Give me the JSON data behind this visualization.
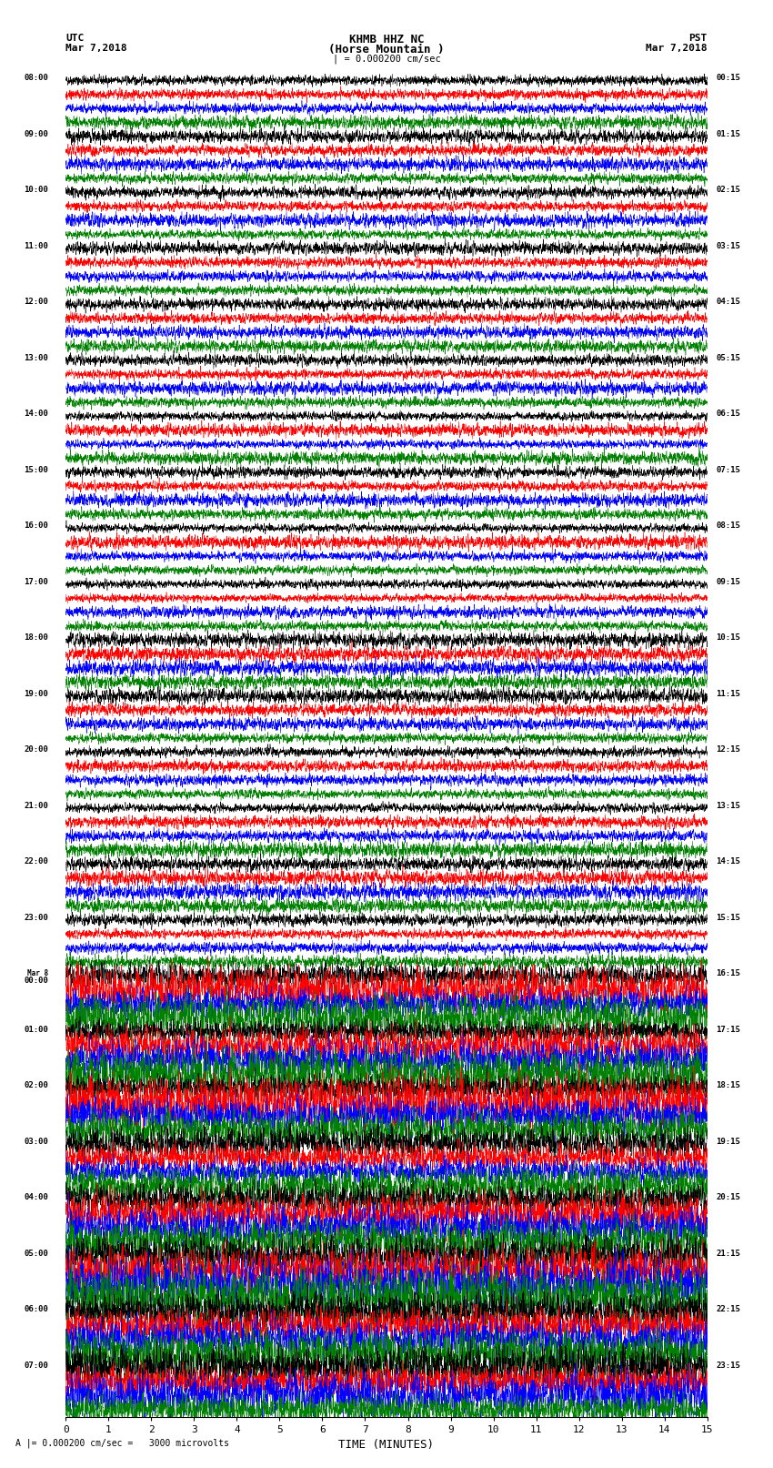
{
  "title_line1": "KHMB HHZ NC",
  "title_line2": "(Horse Mountain )",
  "title_line3": "| = 0.000200 cm/sec",
  "left_label_top": "UTC",
  "left_label_date": "Mar 7,2018",
  "right_label_top": "PST",
  "right_label_date": "Mar 7,2018",
  "bottom_label": "TIME (MINUTES)",
  "bottom_note": "A |= 0.000200 cm/sec =   3000 microvolts",
  "xlabel_ticks": [
    0,
    1,
    2,
    3,
    4,
    5,
    6,
    7,
    8,
    9,
    10,
    11,
    12,
    13,
    14,
    15
  ],
  "utc_times": [
    "08:00",
    "09:00",
    "10:00",
    "11:00",
    "12:00",
    "13:00",
    "14:00",
    "15:00",
    "16:00",
    "17:00",
    "18:00",
    "19:00",
    "20:00",
    "21:00",
    "22:00",
    "23:00",
    "Mar 8\n00:00",
    "01:00",
    "02:00",
    "03:00",
    "04:00",
    "05:00",
    "06:00",
    "07:00"
  ],
  "pst_times": [
    "00:15",
    "01:15",
    "02:15",
    "03:15",
    "04:15",
    "05:15",
    "06:15",
    "07:15",
    "08:15",
    "09:15",
    "10:15",
    "11:15",
    "12:15",
    "13:15",
    "14:15",
    "15:15",
    "16:15",
    "17:15",
    "18:15",
    "19:15",
    "20:15",
    "21:15",
    "22:15",
    "23:15"
  ],
  "n_rows": 24,
  "traces_per_row": 4,
  "colors": [
    "black",
    "red",
    "blue",
    "green"
  ],
  "n_points": 4000,
  "bg_color": "white",
  "fig_width": 8.5,
  "fig_height": 16.13,
  "dpi": 100
}
